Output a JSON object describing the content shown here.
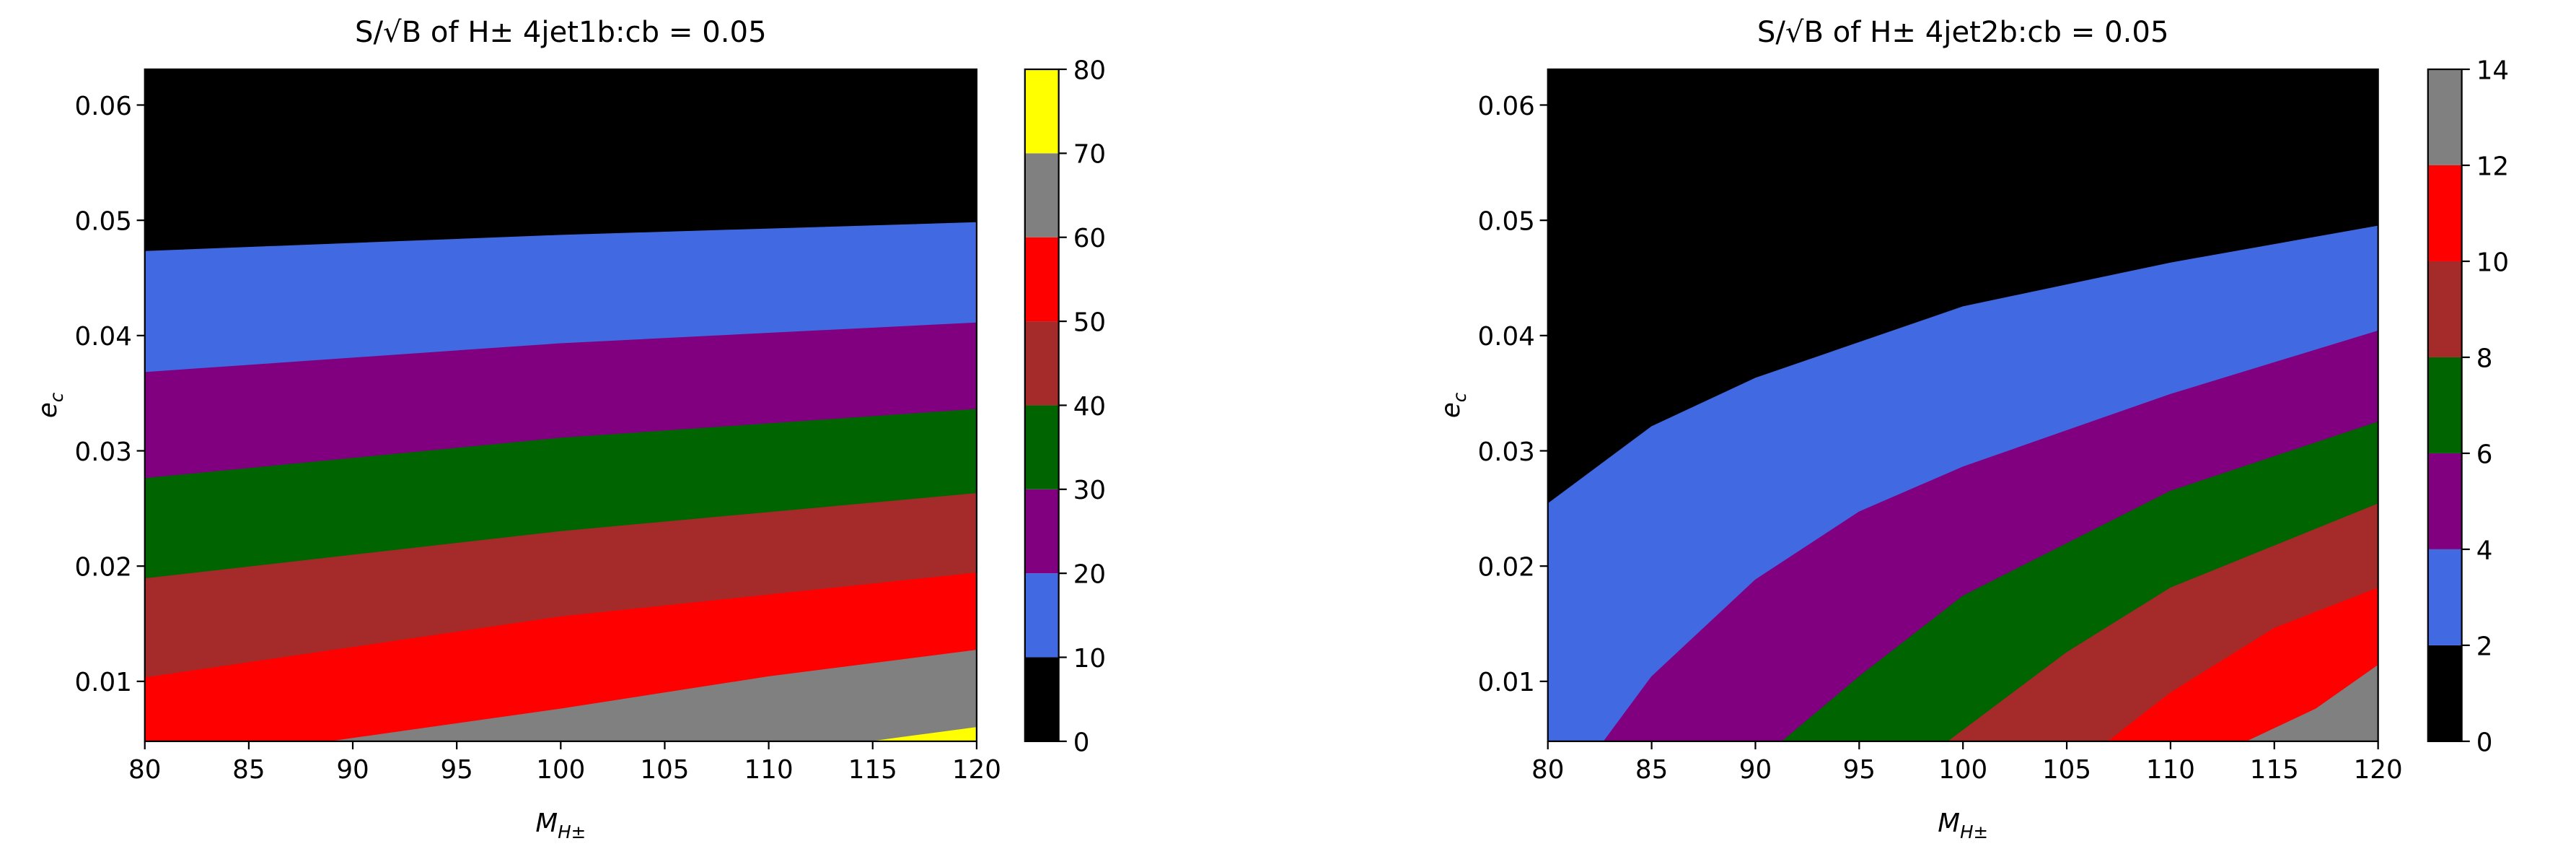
{
  "chart_data": [
    {
      "type": "contourf",
      "title": "S/√B of H± 4jet1b:cb = 0.05",
      "xlabel": [
        "M",
        "H±"
      ],
      "ylabel": [
        "e",
        "c"
      ],
      "xlim": [
        80,
        120
      ],
      "ylim": [
        0.0048,
        0.0631
      ],
      "xticks": [
        80,
        85,
        90,
        95,
        100,
        105,
        110,
        115,
        120
      ],
      "yticks": [
        0.01,
        0.02,
        0.03,
        0.04,
        0.05,
        0.06
      ],
      "levels": [
        0,
        10,
        20,
        30,
        40,
        50,
        60,
        70,
        80
      ],
      "colors": [
        "#000000",
        "#4169e1",
        "#800080",
        "#006400",
        "#a52a2a",
        "#ff0000",
        "#808080",
        "#ffff00"
      ],
      "contours": [
        {
          "x": [
            80,
            100,
            120
          ],
          "y": [
            0.0473,
            0.0487,
            0.0498
          ]
        },
        {
          "x": [
            80,
            100,
            120
          ],
          "y": [
            0.0368,
            0.0393,
            0.0411
          ]
        },
        {
          "x": [
            80,
            100,
            120
          ],
          "y": [
            0.0276,
            0.0311,
            0.0336
          ]
        },
        {
          "x": [
            80,
            100,
            120
          ],
          "y": [
            0.0189,
            0.023,
            0.0263
          ]
        },
        {
          "x": [
            80,
            100,
            120
          ],
          "y": [
            0.0103,
            0.0156,
            0.0194
          ]
        },
        {
          "x": [
            89,
            100,
            110,
            120
          ],
          "y": [
            0.0048,
            0.0076,
            0.0104,
            0.0127
          ]
        },
        {
          "x": [
            115,
            120
          ],
          "y": [
            0.0048,
            0.006
          ]
        }
      ]
    },
    {
      "type": "contourf",
      "title": "S/√B of H± 4jet2b:cb = 0.05",
      "xlabel": [
        "M",
        "H±"
      ],
      "ylabel": [
        "e",
        "c"
      ],
      "xlim": [
        80,
        120
      ],
      "ylim": [
        0.0048,
        0.0631
      ],
      "xticks": [
        80,
        85,
        90,
        95,
        100,
        105,
        110,
        115,
        120
      ],
      "yticks": [
        0.01,
        0.02,
        0.03,
        0.04,
        0.05,
        0.06
      ],
      "levels": [
        0,
        2,
        4,
        6,
        8,
        10,
        12,
        14
      ],
      "colors": [
        "#000000",
        "#4169e1",
        "#800080",
        "#006400",
        "#a52a2a",
        "#ff0000",
        "#808080"
      ],
      "contours": [
        {
          "x": [
            80,
            85,
            90,
            100,
            110,
            120
          ],
          "y": [
            0.0254,
            0.0321,
            0.0363,
            0.0425,
            0.0463,
            0.0495
          ]
        },
        {
          "x": [
            82.7,
            85,
            90,
            95,
            100,
            110,
            120
          ],
          "y": [
            0.0048,
            0.0104,
            0.0188,
            0.0247,
            0.0286,
            0.0349,
            0.0404
          ]
        },
        {
          "x": [
            91.3,
            95,
            100,
            110,
            120
          ],
          "y": [
            0.0048,
            0.0104,
            0.0174,
            0.0265,
            0.0325
          ]
        },
        {
          "x": [
            99.3,
            105,
            110,
            120
          ],
          "y": [
            0.0048,
            0.0125,
            0.0181,
            0.0254
          ]
        },
        {
          "x": [
            107,
            110,
            115,
            120
          ],
          "y": [
            0.0048,
            0.009,
            0.0146,
            0.0181
          ]
        },
        {
          "x": [
            113.7,
            117,
            120
          ],
          "y": [
            0.0048,
            0.0076,
            0.0114
          ]
        }
      ]
    }
  ]
}
